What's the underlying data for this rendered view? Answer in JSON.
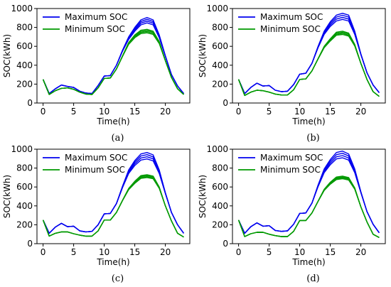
{
  "charts": [
    {
      "caption": "(a)",
      "chart_data": {
        "type": "line",
        "xlabel": "Time(h)",
        "ylabel": "SOC(kWh)",
        "xlim": [
          -1,
          24
        ],
        "ylim": [
          0,
          1000
        ],
        "xticks": [
          "0",
          "5",
          "10",
          "15",
          "20"
        ],
        "yticks": [
          "0",
          "200",
          "400",
          "600",
          "800",
          "1000"
        ],
        "legend": "top-left",
        "grid": false,
        "x": [
          0,
          1,
          2,
          3,
          4,
          5,
          6,
          7,
          8,
          9,
          10,
          11,
          12,
          13,
          14,
          15,
          16,
          17,
          18,
          19,
          20,
          21,
          22,
          23
        ],
        "series": [
          {
            "name": "Maximum SOC",
            "color": "#0000ee",
            "values": [
              250,
              100,
              150,
              190,
              175,
              165,
              125,
              105,
              100,
              185,
              285,
              290,
              400,
              560,
              700,
              800,
              880,
              905,
              880,
              720,
              500,
              300,
              180,
              100
            ]
          },
          {
            "name": "Minimum SOC",
            "color": "#009900",
            "values": [
              250,
              90,
              130,
              155,
              160,
              145,
              115,
              95,
              90,
              160,
              260,
              265,
              360,
              500,
              640,
              720,
              770,
              780,
              760,
              650,
              450,
              270,
              150,
              90
            ]
          }
        ]
      }
    },
    {
      "caption": "(b)",
      "chart_data": {
        "type": "line",
        "xlabel": "Time(h)",
        "ylabel": "SOC(kWh)",
        "xlim": [
          -1,
          24
        ],
        "ylim": [
          0,
          1000
        ],
        "xticks": [
          "0",
          "5",
          "10",
          "15",
          "20"
        ],
        "yticks": [
          "0",
          "200",
          "400",
          "600",
          "800",
          "1000"
        ],
        "legend": "top-left",
        "grid": false,
        "x": [
          0,
          1,
          2,
          3,
          4,
          5,
          6,
          7,
          8,
          9,
          10,
          11,
          12,
          13,
          14,
          15,
          16,
          17,
          18,
          19,
          20,
          21,
          22,
          23
        ],
        "series": [
          {
            "name": "Maximum SOC",
            "color": "#0000ee",
            "values": [
              250,
              100,
              165,
              210,
              180,
              185,
              135,
              120,
              125,
              195,
              305,
              315,
              420,
              600,
              760,
              860,
              930,
              950,
              930,
              760,
              520,
              320,
              190,
              110
            ]
          },
          {
            "name": "Minimum SOC",
            "color": "#009900",
            "values": [
              250,
              80,
              115,
              135,
              130,
              115,
              95,
              85,
              85,
              140,
              250,
              255,
              340,
              470,
              600,
              680,
              750,
              760,
              740,
              620,
              420,
              250,
              120,
              70
            ]
          }
        ]
      }
    },
    {
      "caption": "(c)",
      "chart_data": {
        "type": "line",
        "xlabel": "Time(h)",
        "ylabel": "SOC(kWh)",
        "xlim": [
          -1,
          24
        ],
        "ylim": [
          0,
          1000
        ],
        "xticks": [
          "0",
          "5",
          "10",
          "15",
          "20"
        ],
        "yticks": [
          "0",
          "200",
          "400",
          "600",
          "800",
          "1000"
        ],
        "legend": "top-left",
        "grid": false,
        "x": [
          0,
          1,
          2,
          3,
          4,
          5,
          6,
          7,
          8,
          9,
          10,
          11,
          12,
          13,
          14,
          15,
          16,
          17,
          18,
          19,
          20,
          21,
          22,
          23
        ],
        "series": [
          {
            "name": "Maximum SOC",
            "color": "#0000ee",
            "values": [
              250,
              110,
              175,
              215,
              180,
              185,
              135,
              125,
              130,
              200,
              315,
              320,
              425,
              610,
              780,
              880,
              950,
              965,
              940,
              780,
              540,
              330,
              200,
              110
            ]
          },
          {
            "name": "Minimum SOC",
            "color": "#009900",
            "values": [
              250,
              80,
              110,
              125,
              125,
              105,
              90,
              80,
              80,
              135,
              250,
              250,
              330,
              460,
              585,
              660,
              720,
              730,
              715,
              600,
              400,
              240,
              110,
              70
            ]
          }
        ]
      }
    },
    {
      "caption": "(d)",
      "chart_data": {
        "type": "line",
        "xlabel": "Time(h)",
        "ylabel": "SOC(kWh)",
        "xlim": [
          -1,
          24
        ],
        "ylim": [
          0,
          1000
        ],
        "xticks": [
          "0",
          "5",
          "10",
          "15",
          "20"
        ],
        "yticks": [
          "0",
          "200",
          "400",
          "600",
          "800",
          "1000"
        ],
        "legend": "top-left",
        "grid": false,
        "x": [
          0,
          1,
          2,
          3,
          4,
          5,
          6,
          7,
          8,
          9,
          10,
          11,
          12,
          13,
          14,
          15,
          16,
          17,
          18,
          19,
          20,
          21,
          22,
          23
        ],
        "series": [
          {
            "name": "Maximum SOC",
            "color": "#0000ee",
            "values": [
              250,
              110,
              180,
              220,
              185,
              190,
              140,
              130,
              135,
              205,
              320,
              325,
              430,
              620,
              790,
              890,
              965,
              980,
              950,
              790,
              550,
              340,
              205,
              115
            ]
          },
          {
            "name": "Minimum SOC",
            "color": "#009900",
            "values": [
              250,
              75,
              105,
              120,
              120,
              100,
              85,
              75,
              75,
              130,
              245,
              245,
              325,
              450,
              575,
              650,
              705,
              715,
              700,
              590,
              390,
              230,
              100,
              65
            ]
          }
        ]
      }
    }
  ]
}
